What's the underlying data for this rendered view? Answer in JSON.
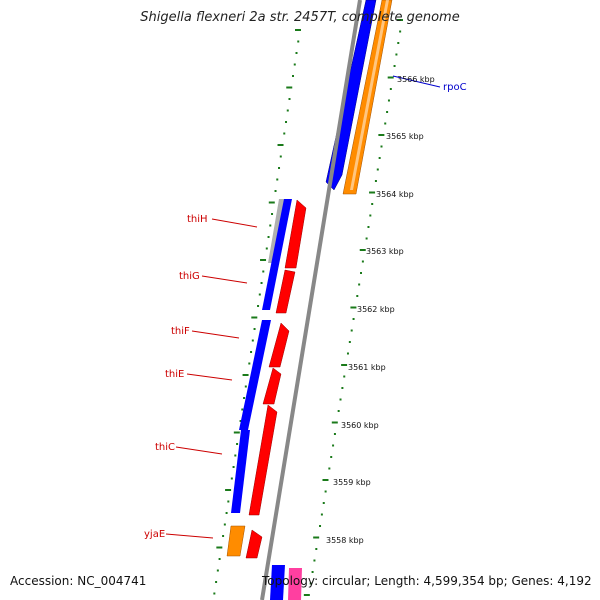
{
  "title": "Shigella flexneri 2a str. 2457T, complete genome",
  "footer": {
    "accession": "Accession: NC_004741",
    "topology": "Topology: circular; Length: 4,599,354 bp; Genes: 4,192"
  },
  "colors": {
    "background": "#ffffff",
    "backbone": "#888888",
    "tick": "#1a7a1a",
    "forward_cds": "#ff0000",
    "reverse_cds": "#0000ff",
    "rrna_like": "#ff8c00",
    "pseudo": "#b0b0b0",
    "pink": "#ff3fa0",
    "gene_label_red": "#cc0000",
    "gene_label_blue": "#0000cc"
  },
  "scale_labels": [
    "3566 kbp",
    "3565 kbp",
    "3564 kbp",
    "3563 kbp",
    "3562 kbp",
    "3561 kbp",
    "3560 kbp",
    "3559 kbp",
    "3558 kbp"
  ],
  "genes": [
    {
      "name": "rpoC",
      "strand": "reverse",
      "color": "blue"
    },
    {
      "name": "thiH",
      "strand": "forward",
      "color": "red"
    },
    {
      "name": "thiG",
      "strand": "forward",
      "color": "red"
    },
    {
      "name": "thiF",
      "strand": "forward",
      "color": "red"
    },
    {
      "name": "thiE",
      "strand": "forward",
      "color": "red"
    },
    {
      "name": "thiC",
      "strand": "forward",
      "color": "red"
    },
    {
      "name": "yjaE",
      "strand": "forward",
      "color": "red"
    }
  ]
}
